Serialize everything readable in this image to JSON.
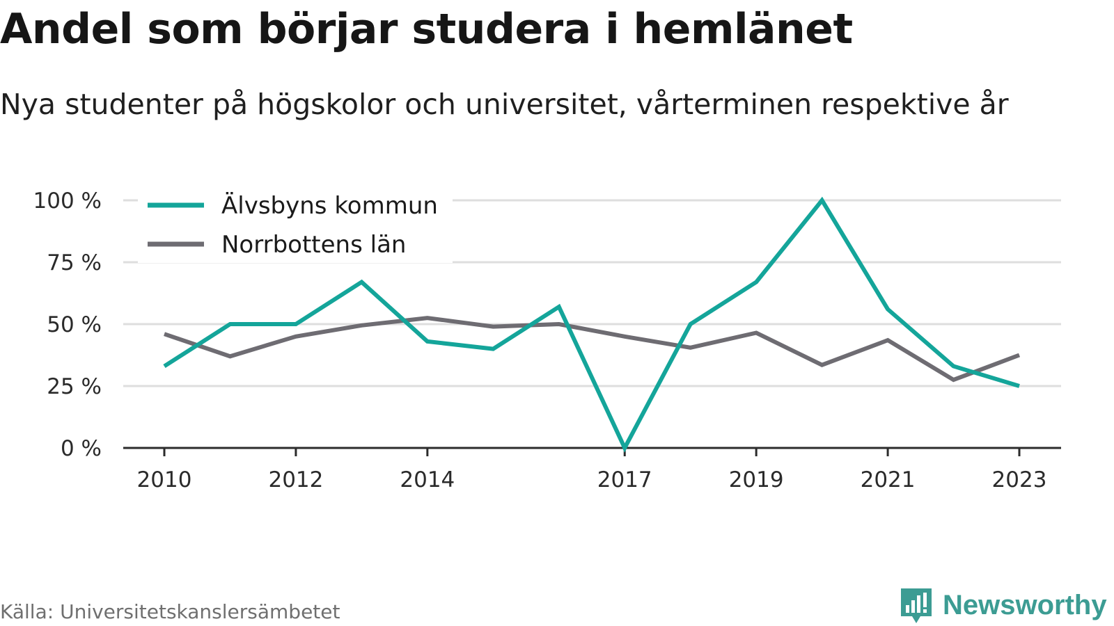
{
  "header": {
    "title": "Andel som börjar studera i hemlänet",
    "subtitle": "Nya studenter på högskolor och universitet, vårterminen respektive år"
  },
  "footer": {
    "source": "Källa: Universitetskanslersämbetet",
    "brand": "Newsworthy"
  },
  "chart_data": {
    "type": "line",
    "x": [
      2010,
      2011,
      2012,
      2013,
      2014,
      2015,
      2016,
      2017,
      2018,
      2019,
      2020,
      2021,
      2022,
      2023
    ],
    "x_tick_labels": [
      "2010",
      "2012",
      "2014",
      "2017",
      "2019",
      "2021",
      "2023"
    ],
    "y_tick_labels": [
      "0 %",
      "25 %",
      "50 %",
      "75 %",
      "100 %"
    ],
    "y_ticks": [
      0,
      25,
      50,
      75,
      100
    ],
    "ylim": [
      0,
      100
    ],
    "grid": true,
    "legend_position": "top-left",
    "series": [
      {
        "name": "Älvsbyns kommun",
        "color": "#14a59a",
        "values": [
          33,
          50,
          50,
          67,
          43,
          40,
          57,
          0,
          50,
          67,
          100,
          56,
          33,
          25
        ]
      },
      {
        "name": "Norrbottens län",
        "color": "#6e6c72",
        "values": [
          46,
          37,
          45,
          49.5,
          52.5,
          49,
          50,
          45,
          40.5,
          46.5,
          33.5,
          43.5,
          27.5,
          37.5
        ]
      }
    ]
  }
}
